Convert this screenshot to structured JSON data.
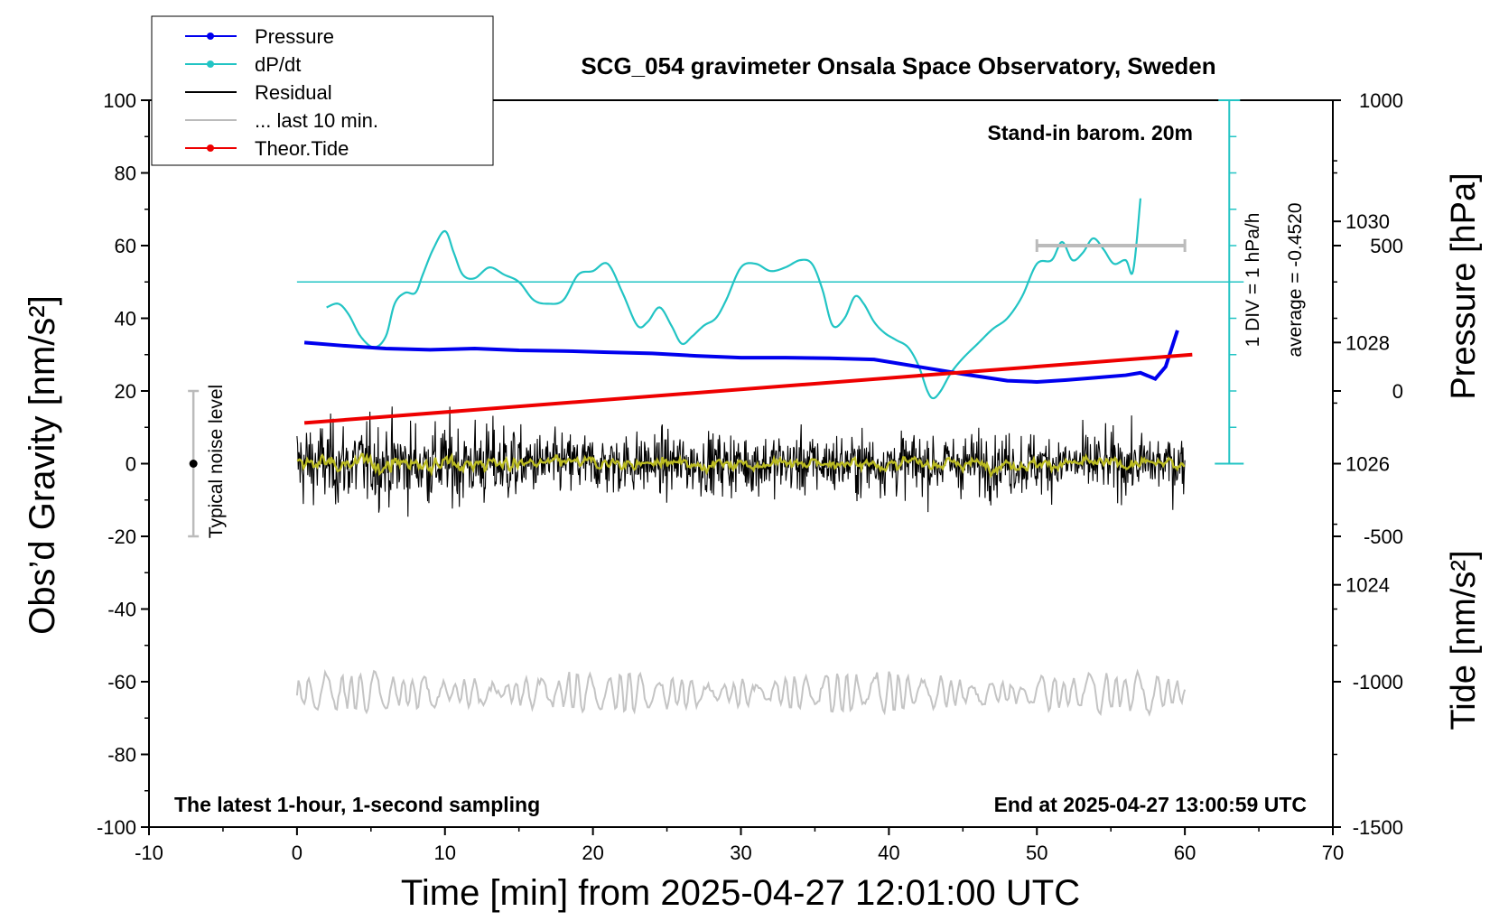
{
  "chart_data": {
    "type": "line",
    "title": "SCG_054 gravimeter Onsala Space Observatory, Sweden",
    "xlabel": "Time [min] from 2025-04-27 12:01:00 UTC",
    "ylabel_left": "Obs’d Gravity [nm/s²]",
    "ylabel_pressure": "Pressure [hPa]",
    "ylabel_tide": "Tide [nm/s²]",
    "xlim": [
      -10,
      70
    ],
    "ylim": [
      -100,
      100
    ],
    "x_ticks": [
      "-10",
      "0",
      "10",
      "20",
      "30",
      "40",
      "50",
      "60",
      "70"
    ],
    "y_ticks": [
      "-100",
      "-80",
      "-60",
      "-40",
      "-20",
      "0",
      "20",
      "40",
      "60",
      "80",
      "100"
    ],
    "pressure_axis": {
      "ticks": [
        "1024",
        "1026",
        "1028",
        "1030"
      ],
      "ylim": [
        1020,
        1032
      ]
    },
    "tide_axis": {
      "ticks": [
        "-1500",
        "-1000",
        "-500",
        "0",
        "500",
        "1000"
      ],
      "ylim": [
        -1500,
        1000
      ]
    },
    "legend": {
      "placement": "top-left",
      "entries": [
        {
          "label": "Pressure",
          "color": "#0000ee",
          "marker": true
        },
        {
          "label": "dP/dt",
          "color": "#22c4c4",
          "marker": true
        },
        {
          "label": "Residual",
          "color": "#000000",
          "marker": false
        },
        {
          "label": "... last 10 min.",
          "color": "#bbbbbb",
          "marker": false
        },
        {
          "label": "Theor.Tide",
          "color": "#ee0000",
          "marker": true
        }
      ]
    },
    "annotations": {
      "stand_in": "Stand-in barom. 20m",
      "div_label": "1 DIV = 1 hPa/h",
      "average_label": "average = -0.4520",
      "noise_label": "Typical noise level",
      "bottom_left": "The latest 1-hour, 1-second sampling",
      "bottom_right": "End at 2025-04-27 13:00:59 UTC"
    },
    "noise_bar": {
      "x": -7,
      "center": 0,
      "half_range": 20
    },
    "last_10min_bar": {
      "x_start": 50,
      "x_end": 60,
      "tide_value": 500
    },
    "dpdt_scale": {
      "x": 63,
      "zero_gravity": 50,
      "div_gravity": 10,
      "bottom_gravity": 0,
      "top_gravity": 100
    },
    "series": {
      "pressure_hpa": {
        "x": [
          0.5,
          3,
          6,
          9,
          12,
          15,
          18,
          21,
          24,
          27,
          30,
          33,
          36,
          39,
          42,
          45,
          48,
          50,
          52,
          54,
          56,
          57,
          58,
          58.7,
          59.5
        ],
        "y": [
          1028.0,
          1027.95,
          1027.9,
          1027.88,
          1027.9,
          1027.87,
          1027.86,
          1027.84,
          1027.82,
          1027.78,
          1027.75,
          1027.75,
          1027.74,
          1027.72,
          1027.6,
          1027.48,
          1027.37,
          1027.35,
          1027.38,
          1027.42,
          1027.46,
          1027.5,
          1027.4,
          1027.6,
          1028.2
        ]
      },
      "dpdt_gravity_units": {
        "x": [
          2,
          2.8,
          3.5,
          4.3,
          5.2,
          6,
          6.6,
          7.3,
          8,
          8.5,
          9.2,
          10,
          10.6,
          11.2,
          12,
          13,
          14,
          15,
          16,
          17,
          18,
          19,
          20,
          21,
          22,
          23,
          23.7,
          24.5,
          25.3,
          26,
          26.7,
          27.5,
          28.3,
          29,
          30,
          31,
          32,
          33,
          34,
          34.8,
          35.5,
          36.2,
          37,
          37.7,
          38.3,
          39,
          39.7,
          40.5,
          41.3,
          42,
          42.6,
          43,
          43.5,
          44.2,
          45,
          46,
          47,
          48,
          49,
          50,
          51,
          51.7,
          52.4,
          53.1,
          53.8,
          54.5,
          55.2,
          56,
          56.5,
          57
        ],
        "y": [
          43,
          44,
          41,
          35,
          32,
          35,
          44,
          47,
          47,
          52,
          59,
          64,
          58,
          52,
          51,
          54,
          52,
          50,
          45,
          44,
          45,
          52,
          53,
          55,
          47,
          38,
          39,
          43,
          38,
          33,
          35,
          38,
          40,
          45,
          54,
          55,
          53,
          54,
          56,
          55,
          48,
          38,
          40,
          46,
          44,
          39,
          36,
          34,
          32,
          27,
          20,
          18,
          20,
          25,
          29,
          33,
          37,
          40,
          46,
          55,
          56,
          61,
          56,
          58,
          62,
          59,
          55,
          56,
          53,
          73
        ]
      },
      "theoretical_tide_nms2": {
        "x": [
          0.5,
          60.5
        ],
        "y": [
          -110,
          125
        ]
      },
      "residual": {
        "x_range": [
          0,
          60
        ],
        "center": 0,
        "typical_spread": 5
      },
      "residual_smoothed": {
        "x_range": [
          0,
          60
        ],
        "center": 0,
        "color": "#bbbb22"
      },
      "last_10min_gravity": {
        "x_range": [
          0,
          60
        ],
        "center": -63,
        "typical_spread": 4
      }
    }
  }
}
